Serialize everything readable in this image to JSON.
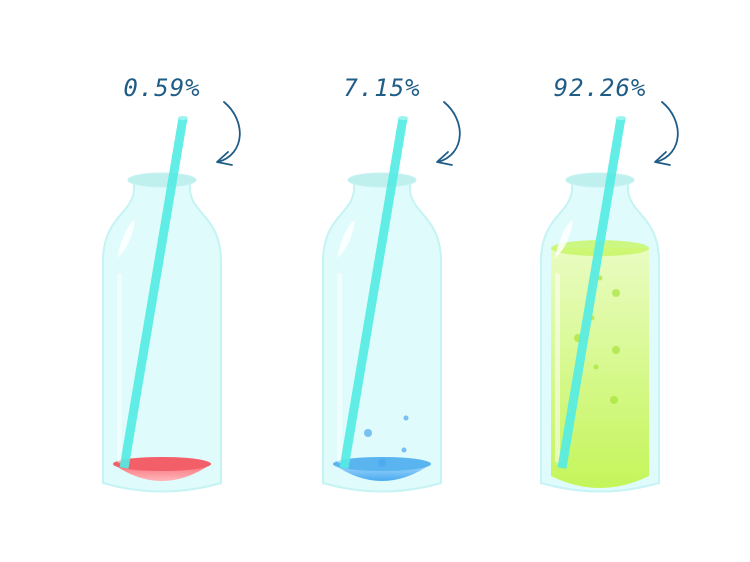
{
  "chart_data": {
    "type": "bar",
    "categories": [
      "",
      "",
      ""
    ],
    "values": [
      0.59,
      7.15,
      92.26
    ],
    "labels": [
      "0.59%",
      "7.15%",
      "92.26%"
    ],
    "unit": "%",
    "ylim": [
      0,
      100
    ],
    "colors": [
      "#f25f68",
      "#5ab4f0",
      "#c4f55a"
    ],
    "label_color": "#1f5c86",
    "bottle_color": "#ddfbfb",
    "straw_color": "#55ece4"
  }
}
